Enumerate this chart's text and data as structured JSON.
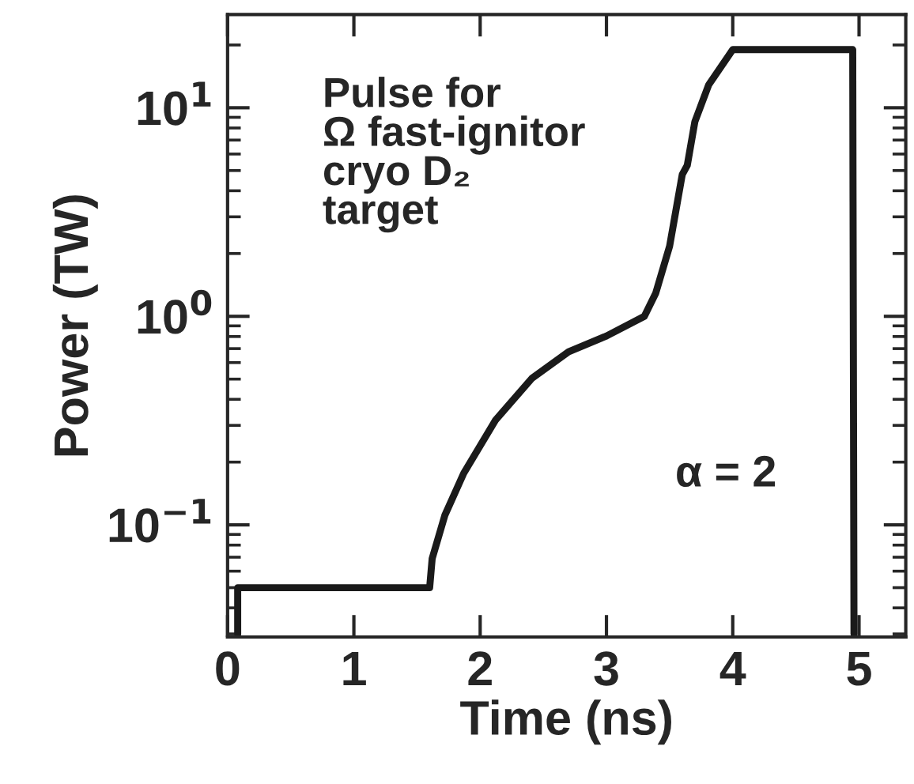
{
  "chart_data": {
    "type": "line",
    "xlabel": "Time (ns)",
    "ylabel": "Power (TW)",
    "x": [
      0.08,
      0.08,
      1.6,
      1.62,
      1.72,
      1.87,
      2.12,
      2.41,
      2.7,
      3.0,
      3.3,
      3.39,
      3.5,
      3.6,
      3.64,
      3.7,
      3.81,
      4.0,
      4.95,
      4.96
    ],
    "series": [
      {
        "color": "#1a1a1a",
        "values": [
          0.03,
          0.05,
          0.05,
          0.069,
          0.111,
          0.177,
          0.317,
          0.505,
          0.676,
          0.805,
          1.0,
          1.29,
          2.17,
          4.78,
          5.3,
          8.57,
          12.9,
          19,
          19,
          0.03
        ]
      }
    ],
    "log": "y",
    "xlim": [
      0,
      5.37
    ],
    "ylim": [
      0.029,
      28
    ],
    "xticks": [
      0,
      1,
      2,
      3,
      4,
      5
    ],
    "yticks": [
      {
        "value": 0.1,
        "label": "10$^{−1}$"
      },
      {
        "value": 1,
        "label": "10$^{0}$"
      },
      {
        "value": 10,
        "label": "10$^{1}$"
      }
    ],
    "grid": false,
    "marker": "none",
    "line_style": "solid",
    "annotations": [
      "Pulse for\nΩ fast-ignitor\ncryo D₂\ntarget",
      "α = 2"
    ]
  }
}
